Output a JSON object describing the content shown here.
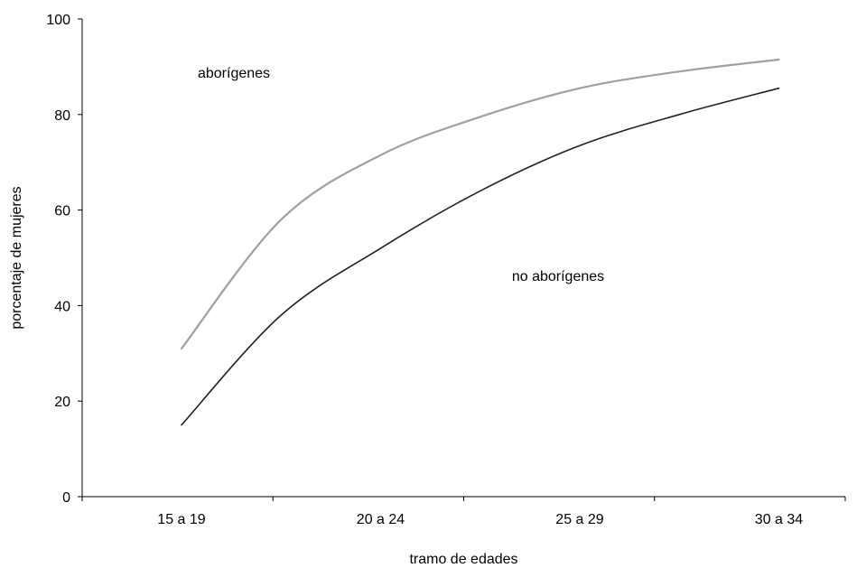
{
  "chart_data": {
    "type": "line",
    "title": "",
    "xlabel": "tramo de edades",
    "ylabel": "porcentaje de mujeres",
    "ylim": [
      0,
      100
    ],
    "yticks": [
      0,
      20,
      40,
      60,
      80,
      100
    ],
    "grid": false,
    "legend": "none",
    "categories": [
      "15 a 19",
      "20 a 24",
      "25 a 29",
      "30 a 34"
    ],
    "series": [
      {
        "name": "aborígenes",
        "color": "#a0a0a0",
        "x": [
          0,
          0.5,
          1,
          1.5,
          2,
          2.5,
          3
        ],
        "values": [
          31,
          58,
          71.5,
          79.5,
          85.5,
          89,
          91.5
        ]
      },
      {
        "name": "no aborígenes",
        "color": "#222222",
        "x": [
          0,
          0.5,
          1,
          1.5,
          2,
          2.5,
          3
        ],
        "values": [
          15,
          38,
          52,
          64,
          73.5,
          80,
          85.5
        ]
      }
    ]
  }
}
